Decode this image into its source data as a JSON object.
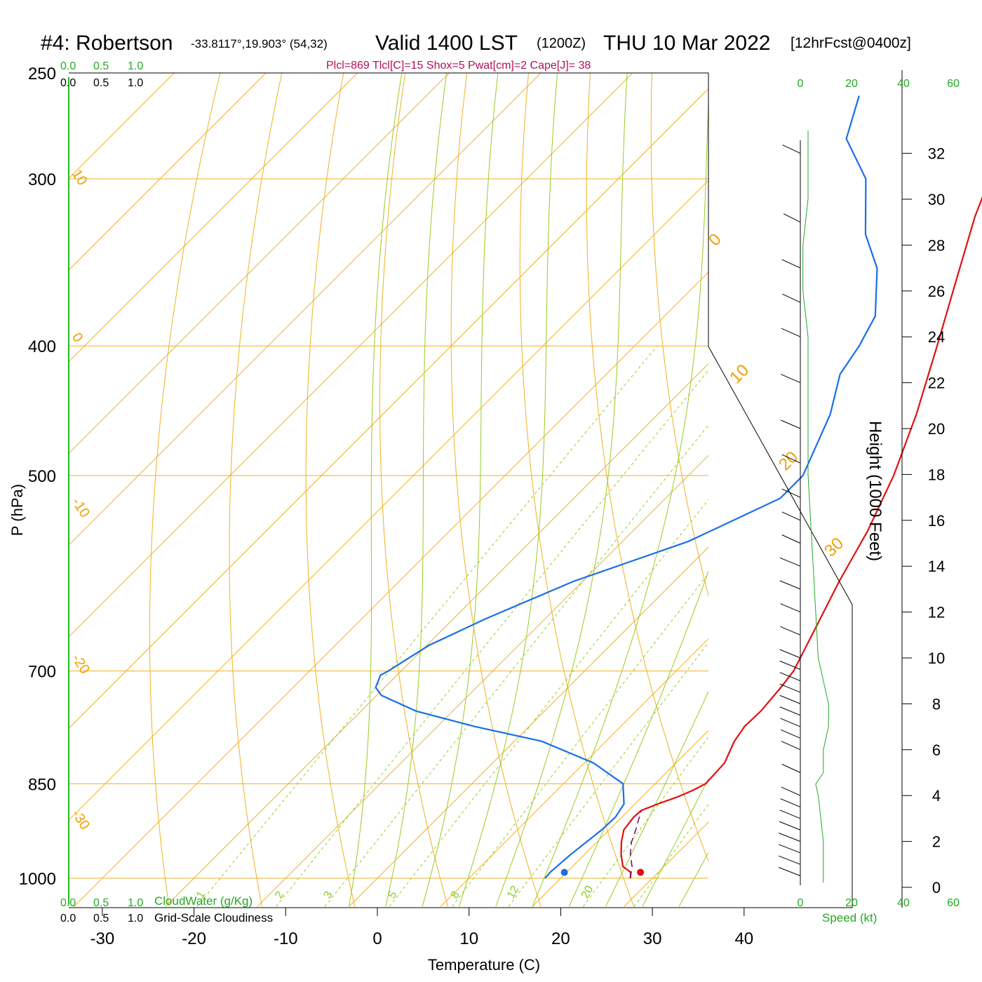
{
  "title": {
    "station": "#4: Robertson",
    "coords": "-33.8117°,19.903° (54,32)",
    "valid": "Valid 1400 LST",
    "utc": "(1200Z)",
    "date": "THU 10 Mar 2022",
    "forecast": "[12hrFcst@0400z]"
  },
  "params_line": "Plcl=869 Tlcl[C]=15 Shox=5 Pwat[cm]=2 Cape[J]= 38",
  "cloud_scale": {
    "top_green": [
      "0.0",
      "0.5",
      "1.0"
    ],
    "top_black": [
      "0.0",
      "0.5",
      "1.0"
    ],
    "bottom_green": [
      "0.0",
      "0.5",
      "1.0"
    ],
    "bottom_black": [
      "0.0",
      "0.5",
      "1.0"
    ],
    "cloudwater_label": "CloudWater (g/Kg)",
    "cloudiness_label": "Grid-Scale Cloudiness"
  },
  "colors": {
    "temperature": "#e01010",
    "dewpoint": "#1a6ee8",
    "isotherm": "#f0b020",
    "dry_adiabat": "#f0b020",
    "moist_adiabat": "#99cc22",
    "mixing_ratio": "#99cc22",
    "parcel": "#800070",
    "speed_axis": "#22aa22"
  },
  "chart_data": {
    "type": "line",
    "subtype": "skew-T log-P sounding",
    "xlabel": "Temperature (C)",
    "ylabel": "P (hPa)",
    "right_ylabel": "Height (1000 Feet)",
    "x_ticks": [
      "-30",
      "-20",
      "-10",
      "0",
      "10",
      "20",
      "30",
      "40"
    ],
    "pressure_ticks": [
      "250",
      "300",
      "400",
      "500",
      "700",
      "850",
      "1000"
    ],
    "height_ticks": [
      "0",
      "2",
      "4",
      "6",
      "8",
      "10",
      "12",
      "14",
      "16",
      "18",
      "20",
      "22",
      "24",
      "26",
      "28",
      "30",
      "32"
    ],
    "speed_ticks_top": [
      "0",
      "20",
      "40",
      "60"
    ],
    "speed_ticks_bottom": [
      "0",
      "20",
      "40",
      "60"
    ],
    "speed_label": "Speed (kt)",
    "isotherm_labels": [
      "10",
      "0",
      "-10",
      "-20",
      "-30"
    ],
    "isotherm_labels_right": [
      "0",
      "10",
      "20",
      "30"
    ],
    "mixing_ratio_labels": [
      "1",
      "2",
      "3",
      "5",
      "8",
      "12",
      "20"
    ],
    "series": [
      {
        "key": "temperature",
        "points": [
          [
            1000,
            27.6
          ],
          [
            990,
            27.0
          ],
          [
            980,
            25.5
          ],
          [
            960,
            24.0
          ],
          [
            940,
            22.7
          ],
          [
            920,
            21.6
          ],
          [
            900,
            21.3
          ],
          [
            890,
            21.4
          ],
          [
            880,
            22.5
          ],
          [
            870,
            23.8
          ],
          [
            860,
            24.8
          ],
          [
            850,
            25.5
          ],
          [
            820,
            25.3
          ],
          [
            790,
            24.0
          ],
          [
            770,
            23.5
          ],
          [
            750,
            23.6
          ],
          [
            720,
            23.2
          ],
          [
            700,
            22.8
          ],
          [
            650,
            20.5
          ],
          [
            600,
            18.0
          ],
          [
            550,
            15.6
          ],
          [
            500,
            12.4
          ],
          [
            450,
            8.2
          ],
          [
            400,
            3.0
          ],
          [
            350,
            -3.0
          ],
          [
            320,
            -7.0
          ],
          [
            300,
            -9.5
          ],
          [
            280,
            -13.0
          ],
          [
            260,
            -16.5
          ]
        ]
      },
      {
        "key": "dewpoint",
        "points": [
          [
            1000,
            18.3
          ],
          [
            990,
            18.2
          ],
          [
            960,
            18.5
          ],
          [
            920,
            19.2
          ],
          [
            900,
            19.3
          ],
          [
            880,
            18.8
          ],
          [
            850,
            16.5
          ],
          [
            820,
            11.0
          ],
          [
            790,
            3.0
          ],
          [
            770,
            -6.0
          ],
          [
            750,
            -14.0
          ],
          [
            730,
            -19.5
          ],
          [
            720,
            -21.0
          ],
          [
            705,
            -21.8
          ],
          [
            700,
            -21.4
          ],
          [
            670,
            -19.8
          ],
          [
            640,
            -16.5
          ],
          [
            600,
            -11.0
          ],
          [
            560,
            -2.8
          ],
          [
            520,
            2.5
          ],
          [
            500,
            2.5
          ],
          [
            450,
            -1.2
          ],
          [
            420,
            -4.5
          ],
          [
            400,
            -5.5
          ],
          [
            380,
            -7.0
          ],
          [
            350,
            -12.0
          ],
          [
            330,
            -17.0
          ],
          [
            300,
            -23.0
          ],
          [
            280,
            -29.5
          ],
          [
            260,
            -32.8
          ]
        ]
      },
      {
        "key": "parcel",
        "dashed": true,
        "points": [
          [
            1000,
            27.6
          ],
          [
            980,
            26.5
          ],
          [
            960,
            25.0
          ],
          [
            940,
            23.8
          ],
          [
            920,
            22.9
          ],
          [
            900,
            21.9
          ],
          [
            890,
            21.4
          ]
        ]
      }
    ],
    "surface_points": {
      "temperature": 28.7,
      "dewpoint": 20.4,
      "pressure": 990
    },
    "wind_profile": [
      {
        "h": 0.5,
        "spd": 55
      },
      {
        "h": 1.0,
        "spd": 55
      },
      {
        "h": 1.5,
        "spd": 55
      },
      {
        "h": 2.0,
        "spd": 55
      },
      {
        "h": 2.5,
        "spd": 50
      },
      {
        "h": 3.0,
        "spd": 45
      },
      {
        "h": 3.5,
        "spd": 40
      },
      {
        "h": 4.0,
        "spd": 30
      },
      {
        "h": 5.0,
        "spd": 25
      },
      {
        "h": 6.0,
        "spd": 30
      },
      {
        "h": 6.5,
        "spd": 35
      },
      {
        "h": 7.0,
        "spd": 40
      },
      {
        "h": 7.5,
        "spd": 45
      },
      {
        "h": 8.0,
        "spd": 45
      },
      {
        "h": 8.5,
        "spd": 45
      },
      {
        "h": 9.0,
        "spd": 45
      },
      {
        "h": 9.5,
        "spd": 45
      },
      {
        "h": 10.0,
        "spd": 45
      },
      {
        "h": 11.0,
        "spd": 40
      },
      {
        "h": 12.0,
        "spd": 40
      },
      {
        "h": 13.0,
        "spd": 45
      },
      {
        "h": 14.0,
        "spd": 45
      },
      {
        "h": 15.0,
        "spd": 25
      },
      {
        "h": 16.0,
        "spd": 25
      },
      {
        "h": 17.0,
        "spd": 25
      },
      {
        "h": 18.5,
        "spd": 25
      },
      {
        "h": 20.0,
        "spd": 35
      },
      {
        "h": 22.0,
        "spd": 35
      },
      {
        "h": 24.0,
        "spd": 30
      },
      {
        "h": 25.5,
        "spd": 20
      },
      {
        "h": 27.0,
        "spd": 25
      },
      {
        "h": 29.0,
        "spd": 10
      },
      {
        "h": 32.0,
        "spd": 20
      }
    ],
    "speed_profile": [
      [
        0.2,
        9
      ],
      [
        1,
        9
      ],
      [
        2,
        9
      ],
      [
        3,
        8
      ],
      [
        4,
        7
      ],
      [
        4.5,
        6
      ],
      [
        5,
        9
      ],
      [
        6,
        9
      ],
      [
        7,
        11
      ],
      [
        8,
        11
      ],
      [
        9,
        9
      ],
      [
        10,
        7
      ],
      [
        12,
        6
      ],
      [
        14,
        5
      ],
      [
        16,
        4
      ],
      [
        18,
        3
      ],
      [
        20,
        3
      ],
      [
        22,
        3
      ],
      [
        24,
        3
      ],
      [
        26,
        1
      ],
      [
        28,
        1
      ],
      [
        30,
        3
      ],
      [
        32,
        3
      ],
      [
        33,
        3
      ]
    ]
  }
}
